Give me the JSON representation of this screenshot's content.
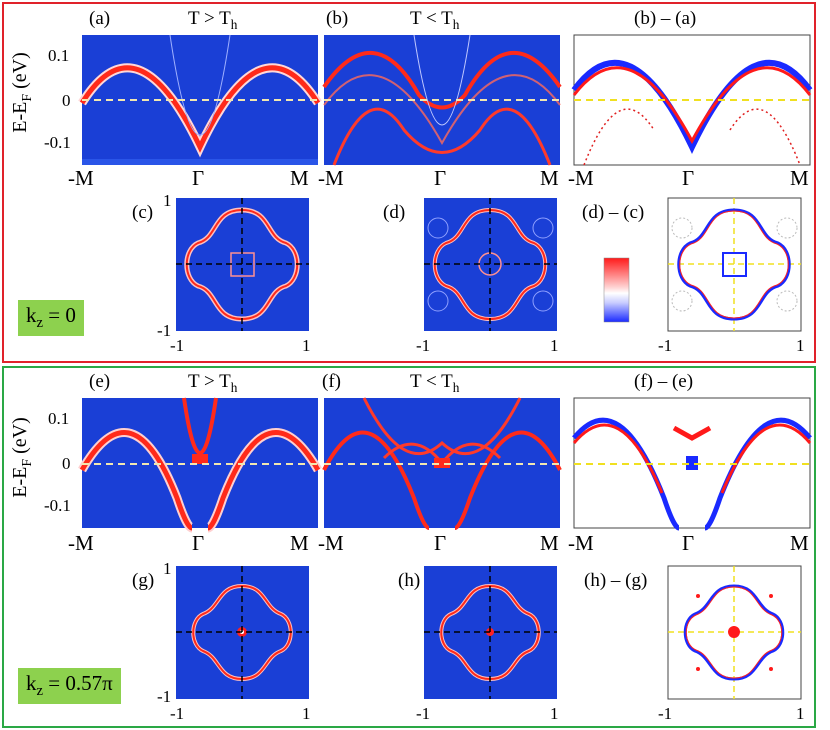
{
  "top": {
    "kz_label": "k",
    "kz_sub": "z",
    "kz_value": "= 0",
    "panels": {
      "a": {
        "label": "(a)",
        "title_main": "T > T",
        "title_sub": "h"
      },
      "b": {
        "label": "(b)",
        "title_main": "T < T",
        "title_sub": "h"
      },
      "ba": {
        "label": "(b) – (a)"
      },
      "c": {
        "label": "(c)"
      },
      "d": {
        "label": "(d)"
      },
      "dc": {
        "label": "(d) – (c)"
      }
    }
  },
  "bottom": {
    "kz_label": "k",
    "kz_sub": "z",
    "kz_value": "= 0.57π",
    "panels": {
      "e": {
        "label": "(e)",
        "title_main": "T > T",
        "title_sub": "h"
      },
      "f": {
        "label": "(f)",
        "title_main": "T < T",
        "title_sub": "h"
      },
      "fe": {
        "label": "(f) – (e)"
      },
      "g": {
        "label": "(g)"
      },
      "h": {
        "label": "(h)"
      },
      "hg": {
        "label": "(h) – (g)"
      }
    }
  },
  "axes": {
    "ylabel_main": "E-E",
    "ylabel_sub": "F",
    "ylabel_unit": " (eV)",
    "yticks": [
      "0.1",
      "0",
      "-0.1"
    ],
    "xticks": [
      "-M",
      "Γ",
      "M"
    ],
    "fs_ticks": [
      "-1",
      "1"
    ]
  },
  "colors": {
    "top_frame": "#e0222a",
    "bottom_frame": "#2aa845",
    "kz_badge": "#8dd14e",
    "map_bg": "#1a3fd6",
    "band_red": "#ff2a1a"
  }
}
